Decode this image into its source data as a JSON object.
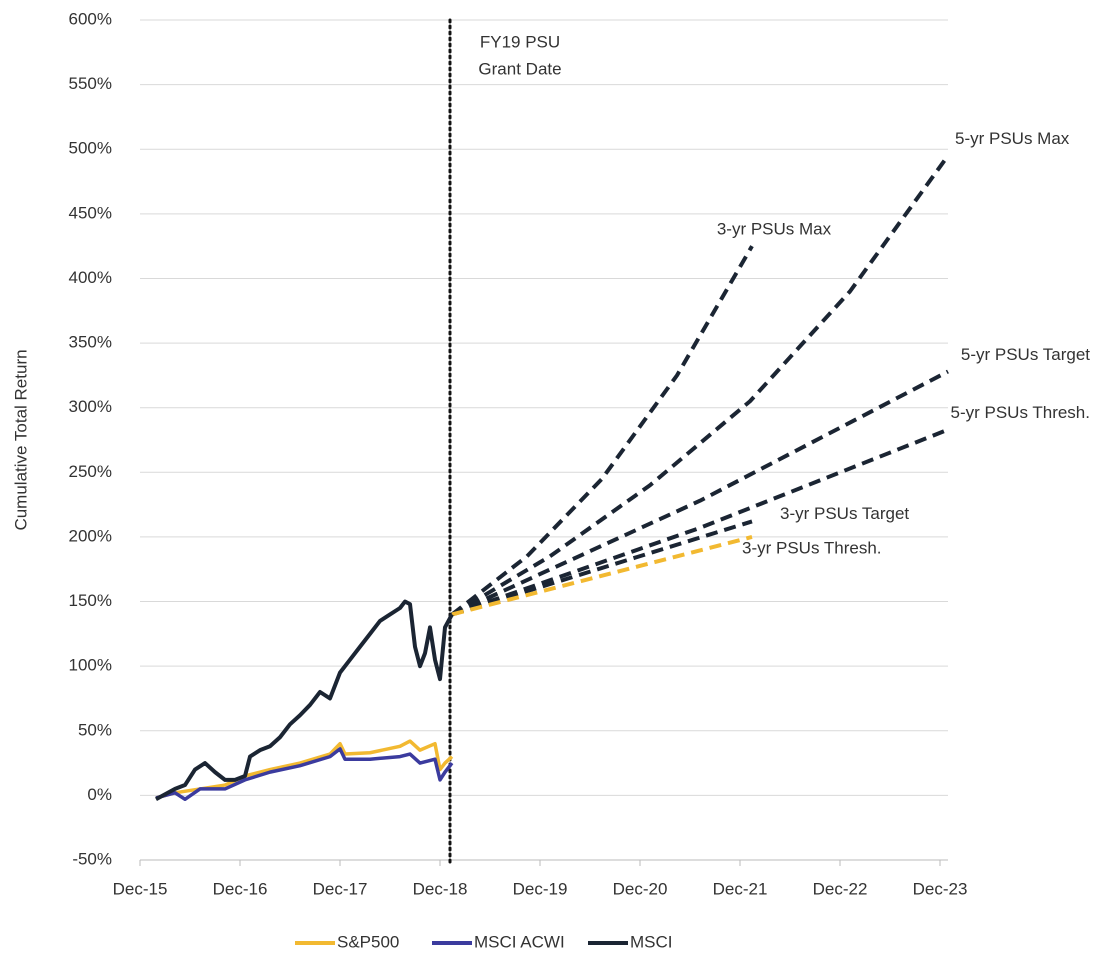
{
  "chart_data": {
    "type": "line",
    "ylabel": "Cumulative Total Return",
    "xlim": [
      2015.92,
      2024.0
    ],
    "xticks": [
      {
        "value": 2015.92,
        "label": "Dec-15"
      },
      {
        "value": 2016.92,
        "label": "Dec-16"
      },
      {
        "value": 2017.92,
        "label": "Dec-17"
      },
      {
        "value": 2018.92,
        "label": "Dec-18"
      },
      {
        "value": 2019.92,
        "label": "Dec-19"
      },
      {
        "value": 2020.92,
        "label": "Dec-20"
      },
      {
        "value": 2021.92,
        "label": "Dec-21"
      },
      {
        "value": 2022.92,
        "label": "Dec-22"
      },
      {
        "value": 2023.92,
        "label": "Dec-23"
      }
    ],
    "ylim": [
      -50,
      600
    ],
    "yticks": [
      {
        "value": -50,
        "label": "-50%"
      },
      {
        "value": 0,
        "label": "0%"
      },
      {
        "value": 50,
        "label": "50%"
      },
      {
        "value": 100,
        "label": "100%"
      },
      {
        "value": 150,
        "label": "150%"
      },
      {
        "value": 200,
        "label": "200%"
      },
      {
        "value": 250,
        "label": "250%"
      },
      {
        "value": 300,
        "label": "300%"
      },
      {
        "value": 350,
        "label": "350%"
      },
      {
        "value": 400,
        "label": "400%"
      },
      {
        "value": 450,
        "label": "450%"
      },
      {
        "value": 500,
        "label": "500%"
      },
      {
        "value": 550,
        "label": "550%"
      },
      {
        "value": 600,
        "label": "600%"
      }
    ],
    "grid": true,
    "legend": "bottom",
    "series": [
      {
        "name": "S&P500",
        "color": "#f2b931",
        "x": [
          2016.08,
          2016.27,
          2016.52,
          2016.77,
          2016.97,
          2017.22,
          2017.52,
          2017.82,
          2017.92,
          2017.97,
          2018.22,
          2018.52,
          2018.62,
          2018.72,
          2018.87,
          2018.92,
          2018.97,
          2019.04
        ],
        "values": [
          -2,
          2,
          5,
          8,
          15,
          20,
          25,
          32,
          40,
          32,
          33,
          38,
          42,
          35,
          40,
          20,
          25,
          30
        ]
      },
      {
        "name": "MSCI ACWI",
        "color": "#3b3b9e",
        "x": [
          2016.08,
          2016.27,
          2016.37,
          2016.52,
          2016.77,
          2016.97,
          2017.22,
          2017.52,
          2017.82,
          2017.92,
          2017.97,
          2018.22,
          2018.52,
          2018.62,
          2018.72,
          2018.87,
          2018.92,
          2018.97,
          2019.04
        ],
        "values": [
          -2,
          2,
          -3,
          5,
          5,
          12,
          18,
          23,
          30,
          36,
          28,
          28,
          30,
          32,
          25,
          28,
          12,
          18,
          25
        ]
      },
      {
        "name": "MSCI",
        "color": "#1b2533",
        "x": [
          2016.08,
          2016.27,
          2016.37,
          2016.47,
          2016.57,
          2016.67,
          2016.77,
          2016.87,
          2016.97,
          2017.02,
          2017.12,
          2017.22,
          2017.32,
          2017.42,
          2017.52,
          2017.62,
          2017.72,
          2017.82,
          2017.92,
          2018.02,
          2018.12,
          2018.22,
          2018.32,
          2018.42,
          2018.52,
          2018.57,
          2018.62,
          2018.67,
          2018.72,
          2018.77,
          2018.82,
          2018.87,
          2018.92,
          2018.97,
          2019.04
        ],
        "values": [
          -3,
          5,
          8,
          20,
          25,
          18,
          12,
          12,
          15,
          30,
          35,
          38,
          45,
          55,
          62,
          70,
          80,
          75,
          95,
          105,
          115,
          125,
          135,
          140,
          145,
          150,
          148,
          115,
          100,
          110,
          130,
          105,
          90,
          130,
          140
        ]
      }
    ],
    "projections": [
      {
        "name": "3-yr PSUs Max",
        "color": "#1b2533",
        "x": [
          2019.04,
          2019.79,
          2020.54,
          2021.29,
          2022.04
        ],
        "values": [
          140,
          185,
          245,
          325,
          425
        ]
      },
      {
        "name": "5-yr PSUs Max",
        "color": "#1b2533",
        "x": [
          2019.04,
          2020.02,
          2021.02,
          2022.02,
          2023.02,
          2024.0
        ],
        "values": [
          140,
          185,
          240,
          305,
          390,
          495
        ]
      },
      {
        "name": "5-yr PSUs Target",
        "color": "#1b2533",
        "x": [
          2019.04,
          2021.52,
          2024.0
        ],
        "values": [
          140,
          228,
          328
        ]
      },
      {
        "name": "5-yr PSUs Thresh.",
        "color": "#1b2533",
        "x": [
          2019.04,
          2021.52,
          2024.0
        ],
        "values": [
          140,
          207,
          283
        ]
      },
      {
        "name": "3-yr PSUs Target",
        "color": "#1b2533",
        "x": [
          2019.04,
          2022.04
        ],
        "values": [
          140,
          212
        ]
      },
      {
        "name": "3-yr PSUs Thresh.",
        "color": "#f2b931",
        "x": [
          2019.04,
          2022.04
        ],
        "values": [
          140,
          200
        ]
      }
    ],
    "annotation": {
      "text": [
        "FY19 PSU",
        "Grant Date"
      ],
      "x": 2019.02
    }
  }
}
